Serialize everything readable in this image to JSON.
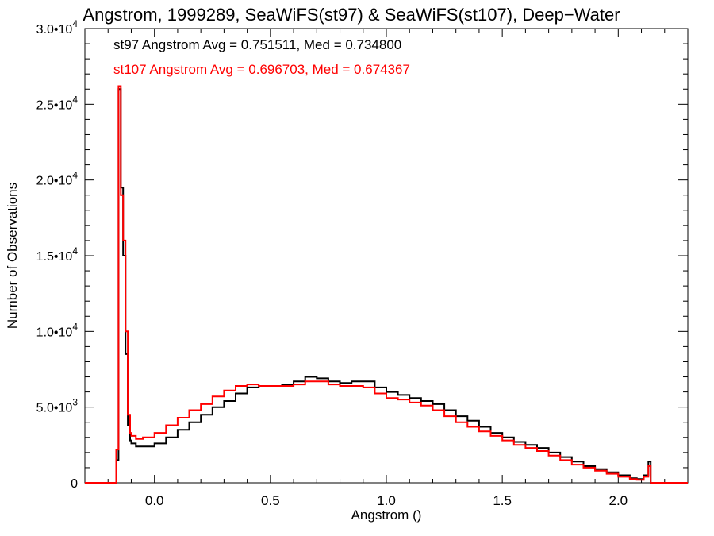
{
  "chart_data": {
    "type": "line",
    "title": "Angstrom, 1999289, SeaWiFS(st97) & SeaWiFS(st107), Deep−Water",
    "xlabel": "Angstrom ()",
    "ylabel": "Number of Observations",
    "xlim": [
      -0.3,
      2.3
    ],
    "ylim": [
      0,
      30000
    ],
    "x_ticks": [
      {
        "value": 0.0,
        "label": "0.0"
      },
      {
        "value": 0.5,
        "label": "0.5"
      },
      {
        "value": 1.0,
        "label": "1.0"
      },
      {
        "value": 1.5,
        "label": "1.5"
      },
      {
        "value": 2.0,
        "label": "2.0"
      }
    ],
    "y_ticks": [
      {
        "value": 0,
        "mant": "0",
        "exp": ""
      },
      {
        "value": 5000,
        "mant": "5.0•10",
        "exp": "3"
      },
      {
        "value": 10000,
        "mant": "1.0•10",
        "exp": "4"
      },
      {
        "value": 15000,
        "mant": "1.5•10",
        "exp": "4"
      },
      {
        "value": 20000,
        "mant": "2.0•10",
        "exp": "4"
      },
      {
        "value": 25000,
        "mant": "2.5•10",
        "exp": "4"
      },
      {
        "value": 30000,
        "mant": "3.0•10",
        "exp": "4"
      }
    ],
    "annotations": [
      {
        "text": "st97 Angstrom Avg = 0.751511, Med = 0.734800",
        "color": "#000000"
      },
      {
        "text": "st107 Angstrom Avg = 0.696703, Med = 0.674367",
        "color": "#ff0000"
      }
    ],
    "series": [
      {
        "color": "#000000",
        "x": [
          -0.3,
          -0.18,
          -0.165,
          -0.155,
          -0.145,
          -0.135,
          -0.125,
          -0.115,
          -0.105,
          -0.1,
          -0.08,
          -0.05,
          0,
          0.05,
          0.1,
          0.15,
          0.2,
          0.25,
          0.3,
          0.35,
          0.4,
          0.45,
          0.5,
          0.55,
          0.6,
          0.65,
          0.7,
          0.75,
          0.8,
          0.85,
          0.9,
          0.95,
          1.0,
          1.05,
          1.1,
          1.15,
          1.2,
          1.25,
          1.3,
          1.35,
          1.4,
          1.45,
          1.5,
          1.55,
          1.6,
          1.65,
          1.7,
          1.75,
          1.8,
          1.85,
          1.9,
          1.95,
          2.0,
          2.05,
          2.08,
          2.11,
          2.13,
          2.14,
          2.15,
          2.3
        ],
        "values": [
          0,
          0,
          1500,
          26000,
          19500,
          15000,
          8500,
          3800,
          2800,
          2600,
          2400,
          2400,
          2600,
          3000,
          3500,
          4000,
          4500,
          5000,
          5400,
          5900,
          6300,
          6400,
          6400,
          6500,
          6700,
          7000,
          6900,
          6700,
          6600,
          6700,
          6700,
          6300,
          6000,
          5800,
          5600,
          5400,
          5200,
          4800,
          4400,
          4100,
          3700,
          3300,
          3000,
          2700,
          2500,
          2300,
          2000,
          1700,
          1400,
          1100,
          900,
          700,
          500,
          300,
          250,
          500,
          1400,
          0,
          0,
          0
        ]
      },
      {
        "color": "#ff0000",
        "x": [
          -0.3,
          -0.18,
          -0.165,
          -0.155,
          -0.145,
          -0.135,
          -0.125,
          -0.115,
          -0.105,
          -0.1,
          -0.08,
          -0.05,
          0,
          0.05,
          0.1,
          0.15,
          0.2,
          0.25,
          0.3,
          0.35,
          0.4,
          0.45,
          0.5,
          0.55,
          0.6,
          0.65,
          0.7,
          0.75,
          0.8,
          0.85,
          0.9,
          0.95,
          1.0,
          1.05,
          1.1,
          1.15,
          1.2,
          1.25,
          1.3,
          1.35,
          1.4,
          1.45,
          1.5,
          1.55,
          1.6,
          1.65,
          1.7,
          1.75,
          1.8,
          1.85,
          1.9,
          1.95,
          2.0,
          2.05,
          2.08,
          2.11,
          2.13,
          2.14,
          2.15,
          2.3
        ],
        "values": [
          0,
          0,
          2200,
          26200,
          19000,
          16000,
          10000,
          4500,
          3300,
          3100,
          2900,
          3000,
          3300,
          3800,
          4300,
          4800,
          5200,
          5700,
          6100,
          6400,
          6500,
          6400,
          6400,
          6400,
          6500,
          6700,
          6700,
          6500,
          6400,
          6400,
          6300,
          5900,
          5600,
          5500,
          5300,
          5100,
          4800,
          4400,
          4000,
          3700,
          3400,
          3100,
          2800,
          2500,
          2300,
          2100,
          1800,
          1500,
          1200,
          1000,
          800,
          600,
          400,
          250,
          200,
          400,
          1100,
          0,
          0,
          0
        ]
      }
    ]
  }
}
